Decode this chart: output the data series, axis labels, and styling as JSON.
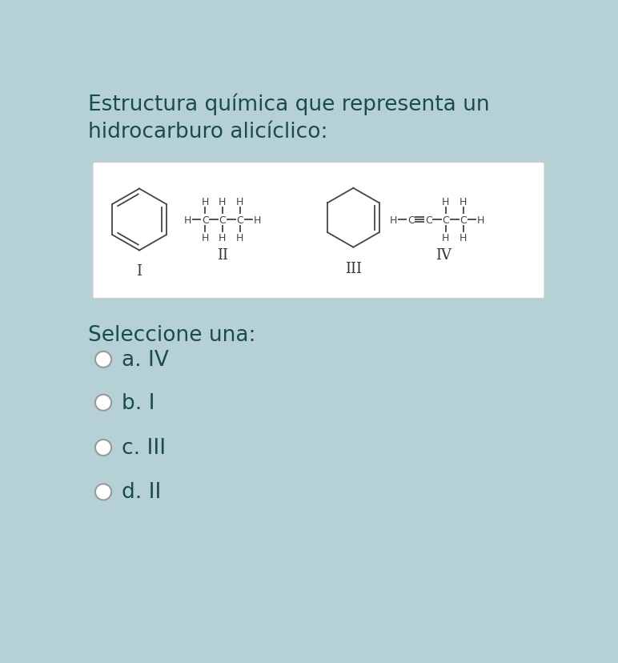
{
  "bg_color": "#b5d1d6",
  "title_line1": "Estructura química que representa un",
  "title_line2": "hidrocarburo alicíclico:",
  "title_color": "#1a4a52",
  "title_fontsize": 19,
  "title_fontweight": "normal",
  "box_bg": "#ffffff",
  "box_edge": "#cccccc",
  "label_I": "I",
  "label_II": "II",
  "label_III": "III",
  "label_IV": "IV",
  "select_text": "Seleccione una:",
  "options": [
    "a. IV",
    "b. I",
    "c. III",
    "d. II"
  ],
  "option_color": "#1a4a52",
  "label_color": "#333333",
  "struct_color": "#444444",
  "struct_lw": 1.3,
  "struct_fs": 9
}
